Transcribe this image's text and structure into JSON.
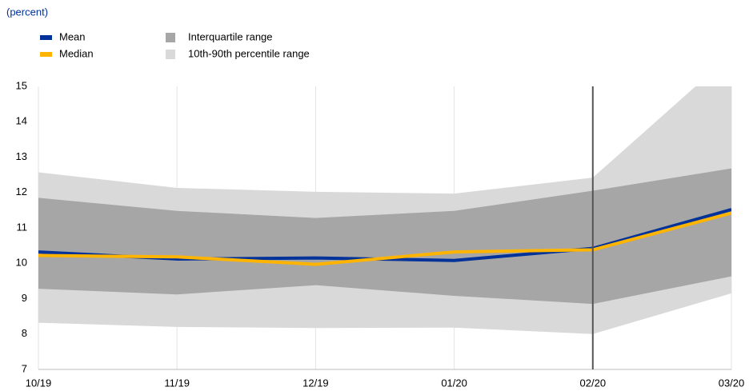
{
  "chart_data": {
    "type": "line",
    "subtitle": "(percent)",
    "categories": [
      "10/19",
      "11/19",
      "12/19",
      "01/20",
      "02/20",
      "03/20"
    ],
    "ylim": [
      7,
      15
    ],
    "yticks": [
      7,
      8,
      9,
      10,
      11,
      12,
      13,
      14,
      15
    ],
    "grid": true,
    "vertical_line": "02/20",
    "bands": [
      {
        "name": "10th-90th percentile range",
        "color": "#d9d9d9",
        "low": [
          8.32,
          8.2,
          8.17,
          8.18,
          8.0,
          9.15
        ],
        "high": [
          12.57,
          12.13,
          12.02,
          11.97,
          12.42,
          15.9
        ]
      },
      {
        "name": "Interquartile range",
        "color": "#a6a6a6",
        "low": [
          9.28,
          9.12,
          9.38,
          9.08,
          8.85,
          9.63
        ],
        "high": [
          11.85,
          11.48,
          11.28,
          11.48,
          12.05,
          12.68
        ]
      }
    ],
    "series": [
      {
        "name": "Mean",
        "color": "#003299",
        "values": [
          10.32,
          10.12,
          10.15,
          10.08,
          10.42,
          11.52
        ]
      },
      {
        "name": "Median",
        "color": "#ffb400",
        "values": [
          10.22,
          10.18,
          9.97,
          10.32,
          10.38,
          11.42
        ]
      }
    ]
  }
}
